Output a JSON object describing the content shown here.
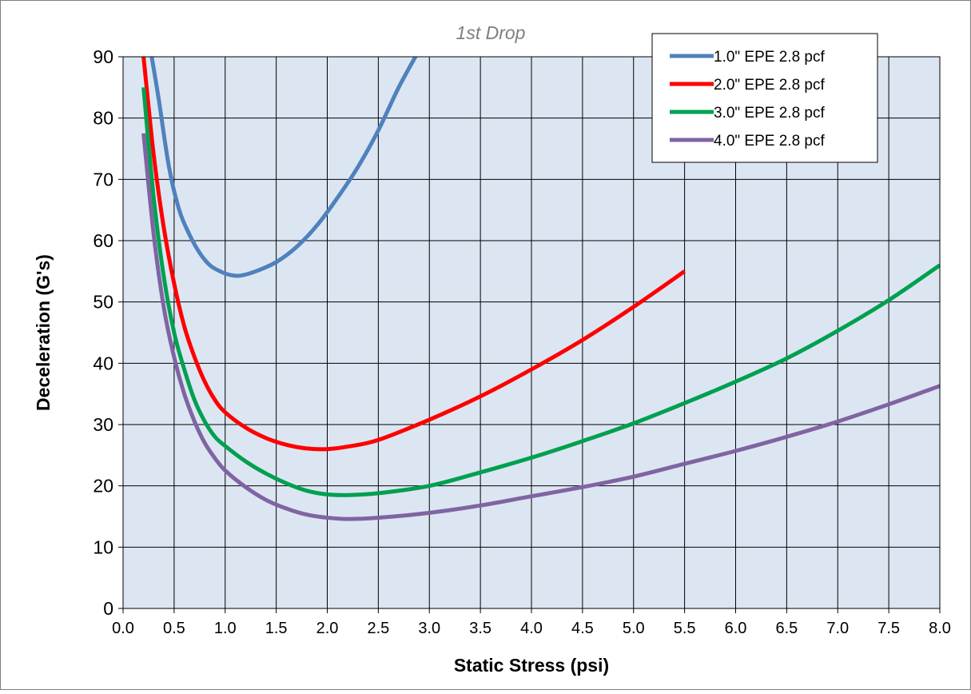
{
  "chart_data": {
    "type": "line",
    "title": "1st Drop",
    "xlabel": "Static Stress (psi)",
    "ylabel": "Deceleration (G's)",
    "xlim": [
      0.0,
      8.0
    ],
    "ylim": [
      0,
      90
    ],
    "x_ticks": [
      "0.0",
      "0.5",
      "1.0",
      "1.5",
      "2.0",
      "2.5",
      "3.0",
      "3.5",
      "4.0",
      "4.5",
      "5.0",
      "5.5",
      "6.0",
      "6.5",
      "7.0",
      "7.5",
      "8.0"
    ],
    "y_ticks": [
      "0",
      "10",
      "20",
      "30",
      "40",
      "50",
      "60",
      "70",
      "80",
      "90"
    ],
    "grid": true,
    "legend_position": "top-right",
    "colors": {
      "plot_background": "#dce6f2",
      "grid": "#000000",
      "title": "#7f7f7f"
    },
    "series": [
      {
        "name": "1.0\" EPE 2.8 pcf",
        "color": "#4f81bd",
        "x": [
          0.28,
          0.35,
          0.45,
          0.55,
          0.65,
          0.75,
          0.85,
          0.95,
          1.05,
          1.15,
          1.3,
          1.5,
          1.7,
          1.9,
          2.1,
          2.3,
          2.5,
          2.7,
          2.88
        ],
        "y": [
          90,
          83,
          72,
          65,
          61,
          58,
          56,
          55,
          54.4,
          54.3,
          55,
          56.5,
          59,
          62.5,
          67,
          72,
          78,
          85,
          90.5
        ]
      },
      {
        "name": "2.0\" EPE 2.8 pcf",
        "color": "#ff0000",
        "x": [
          0.2,
          0.3,
          0.4,
          0.5,
          0.6,
          0.7,
          0.8,
          0.9,
          1.0,
          1.2,
          1.4,
          1.6,
          1.8,
          2.0,
          2.2,
          2.5,
          3.0,
          3.5,
          4.0,
          4.5,
          5.0,
          5.5
        ],
        "y": [
          90,
          74,
          62,
          53,
          46,
          41,
          37,
          34,
          32,
          29.5,
          27.8,
          26.7,
          26.1,
          26.0,
          26.4,
          27.5,
          30.8,
          34.6,
          39.0,
          43.8,
          49.2,
          55.0
        ]
      },
      {
        "name": "3.0\" EPE 2.8 pcf",
        "color": "#00a050",
        "x": [
          0.2,
          0.3,
          0.4,
          0.5,
          0.6,
          0.7,
          0.8,
          0.9,
          1.0,
          1.2,
          1.4,
          1.6,
          1.8,
          2.0,
          2.2,
          2.5,
          3.0,
          3.5,
          4.0,
          4.5,
          5.0,
          5.5,
          6.0,
          6.5,
          7.0,
          7.5,
          8.0
        ],
        "y": [
          85,
          67,
          54,
          45,
          39,
          34,
          30.5,
          28,
          26.5,
          24.0,
          22.0,
          20.4,
          19.2,
          18.6,
          18.5,
          18.8,
          20.0,
          22.2,
          24.6,
          27.3,
          30.2,
          33.5,
          37.0,
          40.8,
          45.3,
          50.3,
          56.0
        ]
      },
      {
        "name": "4.0\" EPE 2.8 pcf",
        "color": "#8064a2",
        "x": [
          0.2,
          0.3,
          0.4,
          0.5,
          0.6,
          0.7,
          0.8,
          0.9,
          1.0,
          1.2,
          1.4,
          1.6,
          1.8,
          2.0,
          2.2,
          2.5,
          3.0,
          3.5,
          4.0,
          4.5,
          5.0,
          5.5,
          6.0,
          6.5,
          7.0,
          7.5,
          8.0
        ],
        "y": [
          77.5,
          61,
          49,
          41,
          35,
          30.5,
          27,
          24.5,
          22.5,
          19.8,
          17.7,
          16.3,
          15.3,
          14.8,
          14.6,
          14.8,
          15.6,
          16.8,
          18.3,
          19.8,
          21.5,
          23.6,
          25.7,
          28.0,
          30.5,
          33.3,
          36.3
        ]
      }
    ]
  }
}
